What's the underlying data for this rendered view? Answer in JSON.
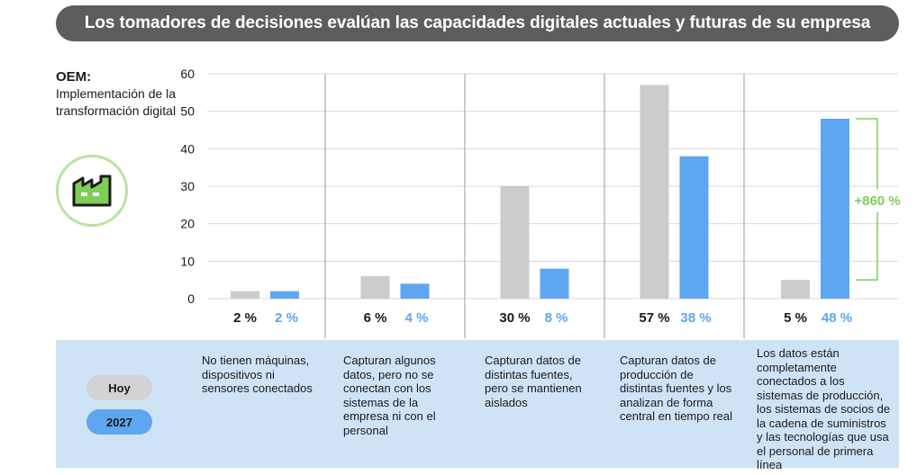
{
  "title": "Los tomadores de decisiones evalúan las capacidades digitales actuales y futuras de su empresa",
  "side": {
    "heading": "OEM:",
    "subheading": "Implementación de la transformación digital",
    "icon": "factory-icon"
  },
  "legend": {
    "today": "Hoy",
    "future": "2027"
  },
  "colors": {
    "today": "#cccccc",
    "future": "#5ea6f0",
    "highlight": "#7dcf58",
    "title_bg": "#5d5d5d",
    "band": "#cfe3f7"
  },
  "chart_data": {
    "type": "bar",
    "title": "Los tomadores de decisiones evalúan las capacidades digitales actuales y futuras de su empresa",
    "ylim": [
      0,
      60
    ],
    "yticks": [
      0,
      10,
      20,
      30,
      40,
      50,
      60
    ],
    "categories": [
      "No tienen máquinas, dispositivos ni sensores conectados",
      "Capturan algunos datos, pero no se conectan con los sistemas de la empresa ni con el personal",
      "Capturan datos de distintas fuentes, pero se mantienen aislados",
      "Capturan datos de producción de distintas fuentes y los analizan de forma central en tiempo real",
      "Los datos están completamente conectados a los sistemas de producción, los sistemas de socios de la cadena de suministros y las tecnologías que usa el personal de primera línea"
    ],
    "series": [
      {
        "name": "Hoy",
        "values": [
          2,
          6,
          30,
          57,
          5
        ],
        "labels": [
          "2 %",
          "6 %",
          "30 %",
          "57 %",
          "5 %"
        ]
      },
      {
        "name": "2027",
        "values": [
          2,
          4,
          8,
          38,
          48
        ],
        "labels": [
          "2 %",
          "4 %",
          "8 %",
          "38 %",
          "48 %"
        ]
      }
    ],
    "annotation": "+860 %"
  }
}
